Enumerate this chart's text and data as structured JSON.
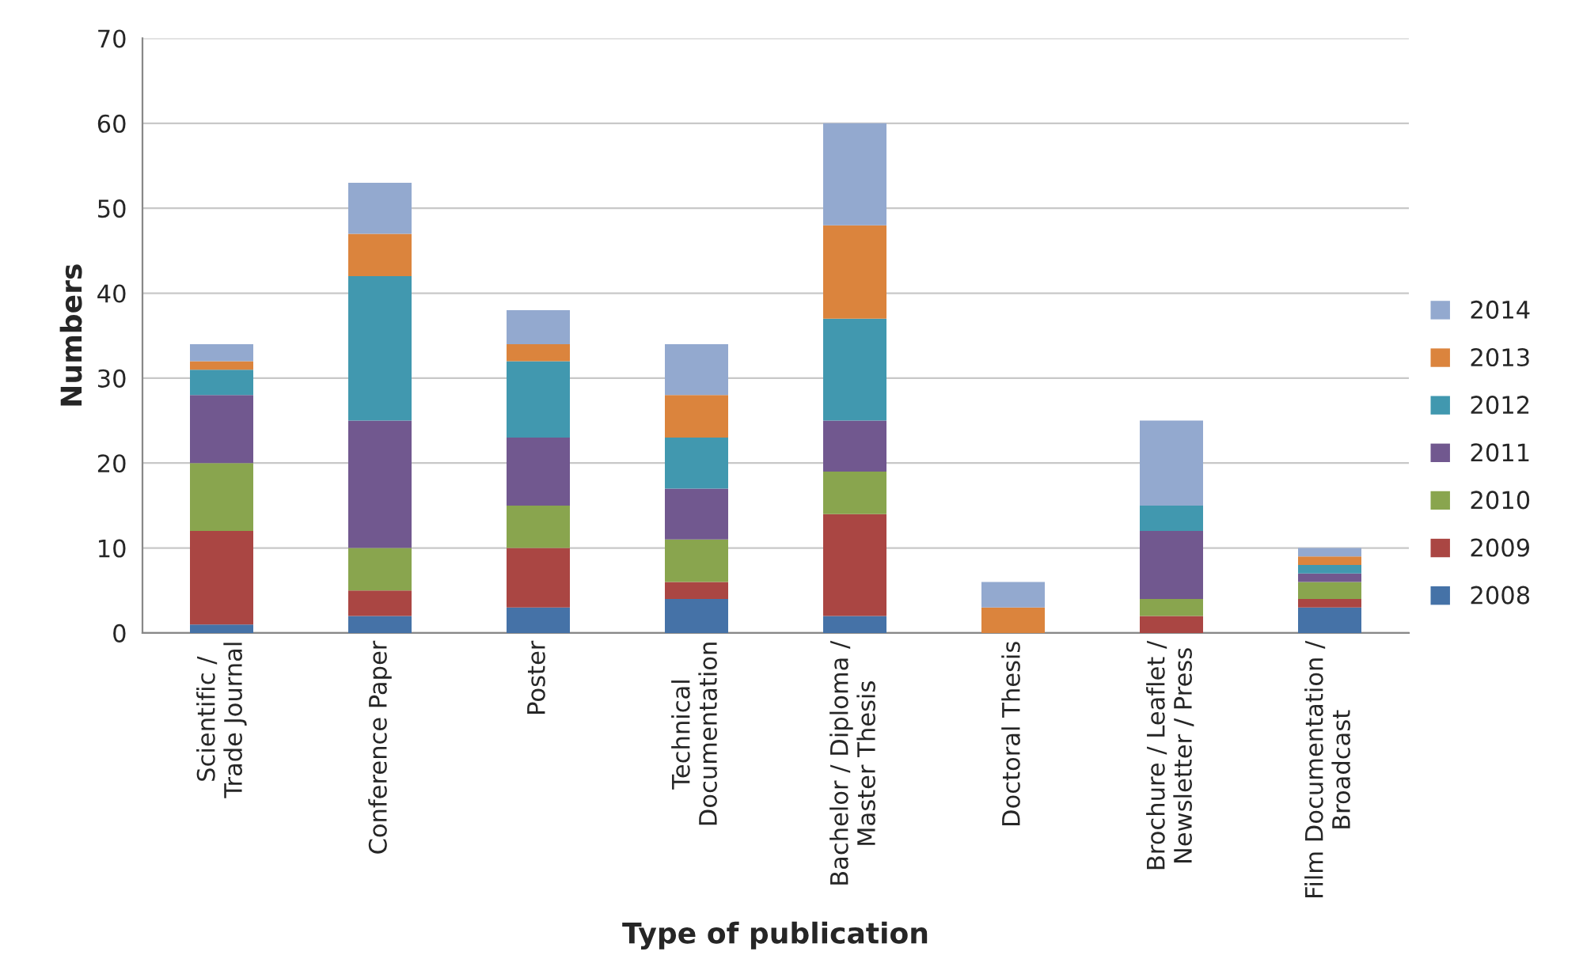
{
  "chart_data": {
    "type": "bar",
    "stacked": true,
    "xlabel": "Type of publication",
    "ylabel": "Numbers",
    "categories": [
      "Scientific /\nTrade Journal",
      "Conference Paper",
      "Poster",
      "Technical\nDocumentation",
      "Bachelor / Diploma /\nMaster Thesis",
      "Doctoral Thesis",
      "Brochure / Leaflet /\nNewsletter / Press",
      "Film Documentation /\nBroadcast"
    ],
    "series": [
      {
        "name": "2008",
        "color": "#4572a7",
        "values": [
          1,
          2,
          3,
          4,
          2,
          0,
          0,
          3
        ]
      },
      {
        "name": "2009",
        "color": "#aa4643",
        "values": [
          11,
          3,
          7,
          2,
          12,
          0,
          2,
          1
        ]
      },
      {
        "name": "2010",
        "color": "#89a54e",
        "values": [
          8,
          5,
          5,
          5,
          5,
          0,
          2,
          2
        ]
      },
      {
        "name": "2011",
        "color": "#71588f",
        "values": [
          8,
          15,
          8,
          6,
          6,
          0,
          8,
          1
        ]
      },
      {
        "name": "2012",
        "color": "#4198af",
        "values": [
          3,
          17,
          9,
          6,
          12,
          0,
          3,
          1
        ]
      },
      {
        "name": "2013",
        "color": "#db843d",
        "values": [
          1,
          5,
          2,
          5,
          11,
          3,
          0,
          1
        ]
      },
      {
        "name": "2014",
        "color": "#93a9cf",
        "values": [
          2,
          6,
          4,
          6,
          12,
          3,
          10,
          1
        ]
      }
    ],
    "ylim": [
      0,
      70
    ],
    "yticks": [
      0,
      10,
      20,
      30,
      40,
      50,
      60,
      70
    ],
    "grid": "y",
    "legend": "right"
  }
}
